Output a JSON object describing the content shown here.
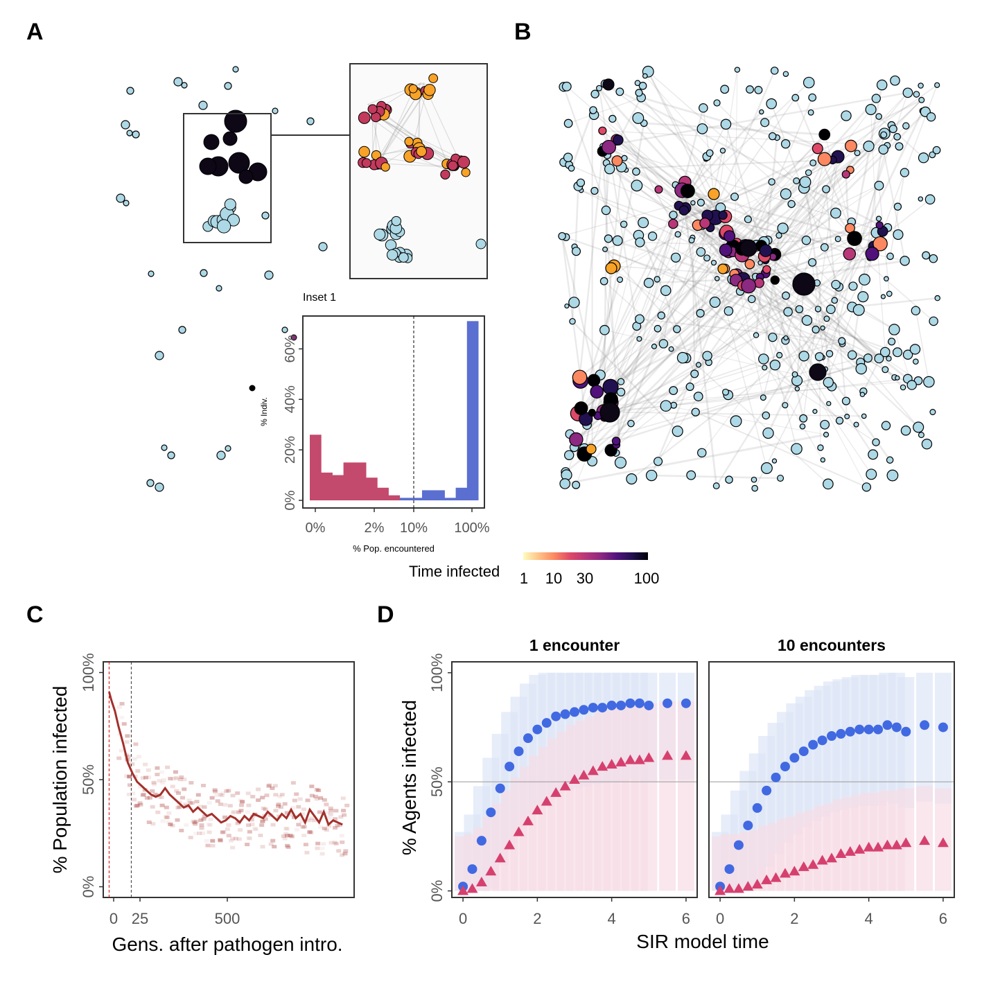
{
  "panel_labels": {
    "a": "A",
    "b": "B",
    "c": "C",
    "d": "D"
  },
  "colors": {
    "susceptible_node": "#add8e6",
    "node_outline": "#000000",
    "pop_low": "#c34a6c",
    "pop_high": "#5a6fd0",
    "trace_line": "#a3302b",
    "heat_cell": "#a3302b",
    "blue_series": "#4169e1",
    "pink_series": "#d6406e",
    "blue_band": "#dde5f7",
    "pink_band": "#f7dde6",
    "magma_stops": [
      "#fcfdbf",
      "#fec287",
      "#fb8861",
      "#de4968",
      "#b73779",
      "#8c2981",
      "#51127c",
      "#221150",
      "#000004"
    ]
  },
  "legend": {
    "title": "Time infected",
    "ticks": [
      "1",
      "10",
      "30",
      "100"
    ]
  },
  "chart_data": [
    {
      "id": "inset1",
      "type": "bar",
      "title": "Inset 1",
      "xlabel": "% Pop. encountered",
      "ylabel": "% Indiv.",
      "xticks": [
        "0%",
        "2%",
        "10%",
        "100%"
      ],
      "yticks": [
        "0%",
        "20%",
        "40%",
        "60%"
      ],
      "ylim": [
        0,
        70
      ],
      "threshold": "10%",
      "bins": [
        {
          "v": 26,
          "g": "low"
        },
        {
          "v": 11,
          "g": "low"
        },
        {
          "v": 10,
          "g": "low"
        },
        {
          "v": 15,
          "g": "low"
        },
        {
          "v": 15,
          "g": "low"
        },
        {
          "v": 9,
          "g": "low"
        },
        {
          "v": 5,
          "g": "low"
        },
        {
          "v": 2,
          "g": "low"
        },
        {
          "v": 1,
          "g": "high"
        },
        {
          "v": 1,
          "g": "high"
        },
        {
          "v": 4,
          "g": "high"
        },
        {
          "v": 4,
          "g": "high"
        },
        {
          "v": 1,
          "g": "high"
        },
        {
          "v": 5,
          "g": "high"
        },
        {
          "v": 71,
          "g": "high"
        }
      ]
    },
    {
      "id": "C",
      "type": "line",
      "xlabel": "Gens. after pathogen intro.",
      "ylabel": "% Population infected",
      "xticks": [
        "0",
        "25",
        "500"
      ],
      "yticks": [
        "0%",
        "50%",
        "100%"
      ],
      "xlim": [
        -25,
        1050
      ],
      "ylim": [
        -5,
        105
      ],
      "vlines": [
        0,
        25
      ],
      "series": [
        {
          "x": [
            0,
            10,
            25,
            40,
            60,
            80,
            100,
            120,
            140,
            160,
            180,
            200,
            220,
            240,
            260,
            280,
            300,
            320,
            340,
            360,
            380,
            400,
            420,
            440,
            460,
            480,
            500,
            520,
            540,
            560,
            580,
            600,
            620,
            640,
            660,
            680,
            700,
            720,
            740,
            760,
            780,
            800,
            820,
            840,
            860,
            880,
            900,
            920,
            940,
            960,
            980,
            1000
          ],
          "y": [
            91,
            87,
            82,
            75,
            67,
            58,
            53,
            49,
            47,
            45,
            43,
            42,
            43,
            46,
            43,
            41,
            39,
            37,
            38,
            35,
            37,
            35,
            33,
            34,
            32,
            30,
            31,
            33,
            32,
            30,
            33,
            31,
            34,
            33,
            32,
            35,
            33,
            31,
            34,
            32,
            36,
            32,
            34,
            30,
            36,
            33,
            30,
            35,
            29,
            31,
            30,
            29
          ]
        }
      ]
    },
    {
      "id": "D",
      "type": "scatter",
      "xlabel": "SIR model time",
      "ylabel": "% Agents infected",
      "xticks": [
        "0",
        "2",
        "4",
        "6"
      ],
      "yticks": [
        "0%",
        "50%",
        "100%"
      ],
      "xlim": [
        -0.3,
        6.3
      ],
      "ylim": [
        -3,
        105
      ],
      "hline": 50,
      "facets": [
        {
          "title": "1 encounter",
          "x": [
            0,
            0.25,
            0.5,
            0.75,
            1,
            1.25,
            1.5,
            1.75,
            2,
            2.25,
            2.5,
            2.75,
            3,
            3.25,
            3.5,
            3.75,
            4,
            4.25,
            4.5,
            4.75,
            5,
            5.5,
            6
          ],
          "blue": [
            2,
            10,
            23,
            36,
            47,
            57,
            64,
            70,
            74,
            77,
            80,
            81,
            82,
            83,
            84,
            84,
            85,
            85,
            86,
            86,
            85,
            86,
            86
          ],
          "pink": [
            0,
            1,
            4,
            9,
            15,
            21,
            27,
            32,
            37,
            41,
            45,
            48,
            51,
            53,
            55,
            57,
            58,
            59,
            60,
            60,
            61,
            62,
            62
          ]
        },
        {
          "title": "10 encounters",
          "x": [
            0,
            0.25,
            0.5,
            0.75,
            1,
            1.25,
            1.5,
            1.75,
            2,
            2.25,
            2.5,
            2.75,
            3,
            3.25,
            3.5,
            3.75,
            4,
            4.25,
            4.5,
            4.75,
            5,
            5.5,
            6
          ],
          "blue": [
            2,
            10,
            21,
            30,
            38,
            46,
            52,
            57,
            61,
            64,
            67,
            69,
            71,
            72,
            73,
            74,
            74,
            74,
            76,
            75,
            73,
            76,
            75
          ],
          "pink": [
            0,
            1,
            1,
            2,
            3,
            5,
            6,
            8,
            9,
            11,
            12,
            14,
            15,
            17,
            18,
            19,
            20,
            20,
            21,
            21,
            22,
            23,
            22
          ]
        }
      ]
    }
  ]
}
